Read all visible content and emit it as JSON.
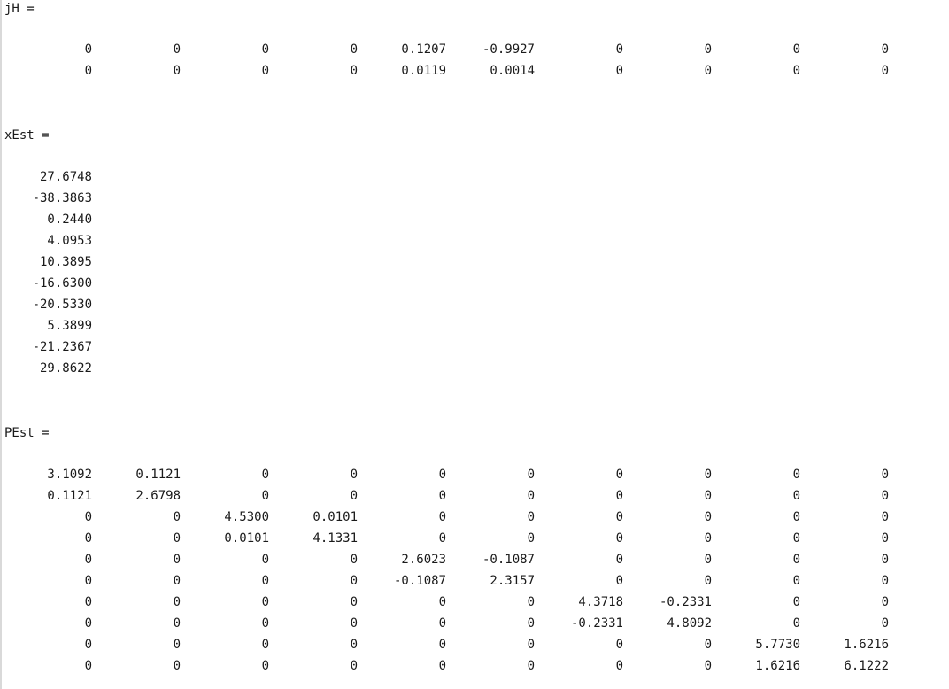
{
  "blocks": [
    {
      "label": "jH =",
      "rows": [
        [
          "0",
          "0",
          "0",
          "0",
          "0.1207",
          "-0.9927",
          "0",
          "0",
          "0",
          "0"
        ],
        [
          "0",
          "0",
          "0",
          "0",
          "0.0119",
          "0.0014",
          "0",
          "0",
          "0",
          "0"
        ]
      ]
    },
    {
      "label": "xEst =",
      "rows": [
        [
          "27.6748"
        ],
        [
          "-38.3863"
        ],
        [
          "0.2440"
        ],
        [
          "4.0953"
        ],
        [
          "10.3895"
        ],
        [
          "-16.6300"
        ],
        [
          "-20.5330"
        ],
        [
          "5.3899"
        ],
        [
          "-21.2367"
        ],
        [
          "29.8622"
        ]
      ]
    },
    {
      "label": "PEst =",
      "rows": [
        [
          "3.1092",
          "0.1121",
          "0",
          "0",
          "0",
          "0",
          "0",
          "0",
          "0",
          "0"
        ],
        [
          "0.1121",
          "2.6798",
          "0",
          "0",
          "0",
          "0",
          "0",
          "0",
          "0",
          "0"
        ],
        [
          "0",
          "0",
          "4.5300",
          "0.0101",
          "0",
          "0",
          "0",
          "0",
          "0",
          "0"
        ],
        [
          "0",
          "0",
          "0.0101",
          "4.1331",
          "0",
          "0",
          "0",
          "0",
          "0",
          "0"
        ],
        [
          "0",
          "0",
          "0",
          "0",
          "2.6023",
          "-0.1087",
          "0",
          "0",
          "0",
          "0"
        ],
        [
          "0",
          "0",
          "0",
          "0",
          "-0.1087",
          "2.3157",
          "0",
          "0",
          "0",
          "0"
        ],
        [
          "0",
          "0",
          "0",
          "0",
          "0",
          "0",
          "4.3718",
          "-0.2331",
          "0",
          "0"
        ],
        [
          "0",
          "0",
          "0",
          "0",
          "0",
          "0",
          "-0.2331",
          "4.8092",
          "0",
          "0"
        ],
        [
          "0",
          "0",
          "0",
          "0",
          "0",
          "0",
          "0",
          "0",
          "5.7730",
          "1.6216"
        ],
        [
          "0",
          "0",
          "0",
          "0",
          "0",
          "0",
          "0",
          "0",
          "1.6216",
          "6.1222"
        ]
      ]
    }
  ]
}
